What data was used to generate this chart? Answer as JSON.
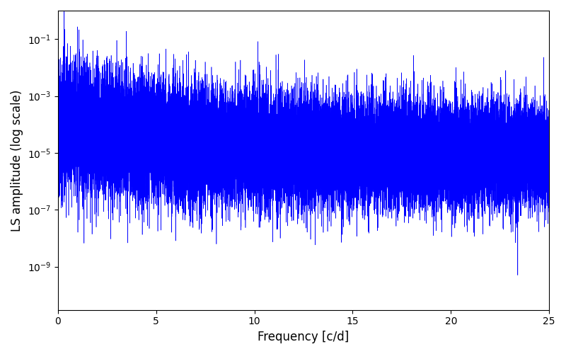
{
  "title": "",
  "xlabel": "Frequency [c/d]",
  "ylabel": "LS amplitude (log scale)",
  "xlim": [
    0,
    25
  ],
  "ylim": [
    3e-11,
    1.0
  ],
  "xmin": 0.0,
  "xmax": 25.0,
  "n_points": 30000,
  "line_color": "#0000ff",
  "background_color": "#ffffff",
  "figsize": [
    8.0,
    5.0
  ],
  "dpi": 100,
  "yscale": "log",
  "yticks": [
    1e-09,
    1e-07,
    1e-05,
    0.001,
    0.1
  ],
  "xticks": [
    0,
    5,
    10,
    15,
    20,
    25
  ],
  "seed": 12345,
  "peaks": [
    {
      "freq": 0.5,
      "amp": 0.07
    },
    {
      "freq": 1.0,
      "amp": 0.27
    },
    {
      "freq": 1.5,
      "amp": 0.03
    },
    {
      "freq": 2.0,
      "amp": 0.04
    },
    {
      "freq": 2.5,
      "amp": 0.025
    },
    {
      "freq": 3.0,
      "amp": 0.09
    },
    {
      "freq": 5.5,
      "amp": 0.045
    },
    {
      "freq": 7.0,
      "amp": 0.018
    },
    {
      "freq": 8.0,
      "amp": 0.001
    },
    {
      "freq": 10.0,
      "amp": 0.001
    },
    {
      "freq": 11.0,
      "amp": 0.0007
    },
    {
      "freq": 13.2,
      "amp": 0.0006
    },
    {
      "freq": 14.0,
      "amp": 0.0003
    },
    {
      "freq": 16.5,
      "amp": 0.00025
    },
    {
      "freq": 20.5,
      "amp": 0.00015
    },
    {
      "freq": 21.5,
      "amp": 0.0002
    },
    {
      "freq": 23.4,
      "amp": 5e-10
    }
  ]
}
